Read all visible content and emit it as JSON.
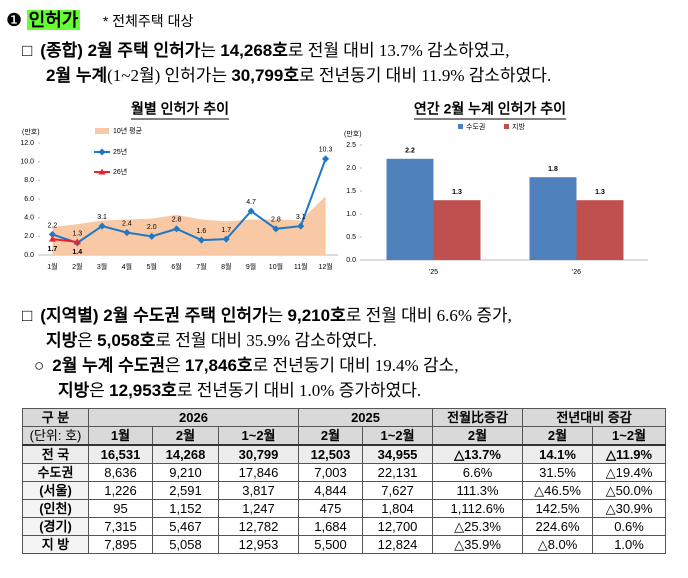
{
  "heading": {
    "number": "❶",
    "title": "인허가",
    "note": "* 전체주택 대상"
  },
  "paragraphs": [
    [
      "□",
      "(종합) 2월 주택 인허가",
      "는 ",
      "14,268호",
      "로 전월 대비 13.7% 감소하였고,",
      "2월 누계",
      "(1~2월) 인허가는 ",
      "30,799호",
      "로 전년동기 대비 11.9% 감소하였다."
    ],
    [
      "□",
      "(지역별) 2월 수도권 주택 인허가",
      "는 ",
      "9,210호",
      "로 전월 대비 6.6% 증가,",
      "지방",
      "은 ",
      "5,058호",
      "로 전월 대비 35.9% 감소하였다."
    ],
    [
      "○",
      "2월 누계 수도권",
      "은 ",
      "17,846호",
      "로 전년동기 대비 19.4% 감소,",
      "지방",
      "은 ",
      "12,953호",
      "로 전년동기 대비 1.0% 증가하였다."
    ]
  ],
  "chart_data": [
    {
      "type": "line",
      "title": "월별 인허가 추이",
      "y_label": "(만호)",
      "categories": [
        "1월",
        "2월",
        "3월",
        "4월",
        "5월",
        "6월",
        "7월",
        "8월",
        "9월",
        "10월",
        "11월",
        "12월"
      ],
      "series": [
        {
          "name": "10년 평균",
          "style": "area",
          "color": "#f9c8a4",
          "values": [
            3.0,
            3.3,
            3.7,
            3.8,
            3.9,
            4.3,
            3.8,
            3.6,
            3.8,
            3.8,
            3.7,
            6.3
          ]
        },
        {
          "name": "25년",
          "color": "#1f77c8",
          "values": [
            2.2,
            1.3,
            3.1,
            2.4,
            2.0,
            2.8,
            1.6,
            1.7,
            4.7,
            2.8,
            3.1,
            10.3
          ],
          "value_labels": [
            "2.2",
            "1.3",
            "3.1",
            "2.4",
            "2.0",
            "2.8",
            "1.6",
            "1.7",
            "4.7",
            "2.8",
            "3.1",
            "10.3"
          ]
        },
        {
          "name": "26년",
          "color": "#e8262a",
          "values": [
            1.7,
            1.4,
            null,
            null,
            null,
            null,
            null,
            null,
            null,
            null,
            null,
            null
          ]
        }
      ],
      "ylim": [
        0,
        12
      ],
      "yticks": [
        {
          "value": 0,
          "label": "0.0"
        },
        {
          "value": 2,
          "label": "2.0"
        },
        {
          "value": 4,
          "label": "4.0"
        },
        {
          "value": 6,
          "label": "6.0"
        },
        {
          "value": 8,
          "label": "8.0"
        },
        {
          "value": 10,
          "label": "10.0"
        },
        {
          "value": 12,
          "label": "12.0"
        }
      ]
    },
    {
      "type": "bar",
      "title": "연간 2월 누계 인허가 추이",
      "y_label": "(만호)",
      "categories": [
        "'25",
        "'26"
      ],
      "series": [
        {
          "name": "수도권",
          "color": "#4f81bd",
          "values": [
            2.2,
            1.8
          ]
        },
        {
          "name": "지방",
          "color": "#c0504d",
          "values": [
            1.3,
            1.3
          ]
        }
      ],
      "ylim": [
        0,
        2.5
      ],
      "yticks": [
        {
          "value": 0,
          "label": "0.0"
        },
        {
          "value": 0.5,
          "label": "0.5"
        },
        {
          "value": 1,
          "label": "1.0"
        },
        {
          "value": 1.5,
          "label": "1.5"
        },
        {
          "value": 2,
          "label": "2.0"
        },
        {
          "value": 2.5,
          "label": "2.5"
        }
      ]
    }
  ],
  "table": {
    "header": [
      [
        "구 분",
        "2026",
        "2025",
        "전월比증감",
        "전년대비 증감"
      ],
      [
        "(단위: 호)",
        "1월",
        "2월",
        "1~2월",
        "2월",
        "1~2월",
        "2월",
        "2월",
        "1~2월"
      ]
    ],
    "rows": [
      [
        "전 국",
        "16,531",
        "14,268",
        "30,799",
        "12,503",
        "34,955",
        "△13.7%",
        "14.1%",
        "△11.9%"
      ],
      [
        "수도권",
        "8,636",
        "9,210",
        "17,846",
        "7,003",
        "22,131",
        "6.6%",
        "31.5%",
        "△19.4%"
      ],
      [
        "(서울)",
        "1,226",
        "2,591",
        "3,817",
        "4,844",
        "7,627",
        "111.3%",
        "△46.5%",
        "△50.0%"
      ],
      [
        "(인천)",
        "95",
        "1,152",
        "1,247",
        "475",
        "1,804",
        "1,112.6%",
        "142.5%",
        "△30.9%"
      ],
      [
        "(경기)",
        "7,315",
        "5,467",
        "12,782",
        "1,684",
        "12,700",
        "△25.3%",
        "224.6%",
        "0.6%"
      ],
      [
        "지 방",
        "7,895",
        "5,058",
        "12,953",
        "5,500",
        "12,824",
        "△35.9%",
        "△8.0%",
        "1.0%"
      ]
    ]
  }
}
